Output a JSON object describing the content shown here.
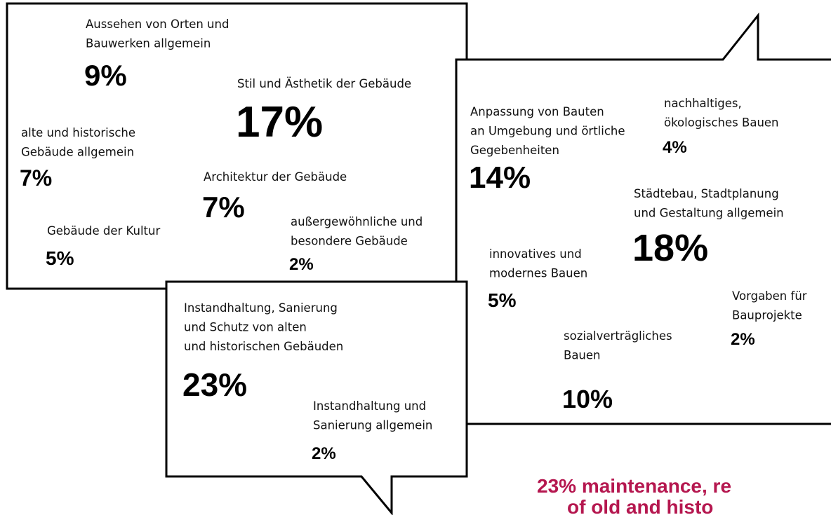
{
  "bubbles": [
    {
      "items": [
        {
          "label": [
            "Aussehen von Orten und",
            "Bauwerken allgemein"
          ],
          "value": "9%"
        },
        {
          "label": [
            "Stil und Ästhetik der Gebäude"
          ],
          "value": "17%"
        },
        {
          "label": [
            "alte und historische",
            "Gebäude allgemein"
          ],
          "value": "7%"
        },
        {
          "label": [
            "Architektur der Gebäude"
          ],
          "value": "7%"
        },
        {
          "label": [
            "Gebäude der Kultur"
          ],
          "value": "5%"
        },
        {
          "label": [
            "außergewöhnliche und",
            "besondere Gebäude"
          ],
          "value": "2%"
        }
      ]
    },
    {
      "items": [
        {
          "label": [
            "nachhaltiges,",
            "ökologisches Bauen"
          ],
          "value": "4%"
        },
        {
          "label": [
            "Anpassung von Bauten",
            "an Umgebung und örtliche",
            "Gegebenheiten"
          ],
          "value": "14%"
        },
        {
          "label": [
            "Städtebau, Stadtplanung",
            "und Gestaltung allgemein"
          ],
          "value": "18%"
        },
        {
          "label": [
            "innovatives und",
            "modernes Bauen"
          ],
          "value": "5%"
        },
        {
          "label": [
            "Vorgaben für",
            "Bauprojekte"
          ],
          "value": "2%"
        },
        {
          "label": [
            "sozialverträgliches",
            "Bauen"
          ],
          "value": "10%"
        }
      ]
    },
    {
      "items": [
        {
          "label": [
            "Instandhaltung, Sanierung",
            "und Schutz von alten",
            "und historischen Gebäuden"
          ],
          "value": "23%"
        },
        {
          "label": [
            "Instandhaltung und",
            "Sanierung allgemein"
          ],
          "value": "2%"
        }
      ]
    }
  ],
  "caption": [
    "23% maintenance, re",
    "of old and histo"
  ]
}
